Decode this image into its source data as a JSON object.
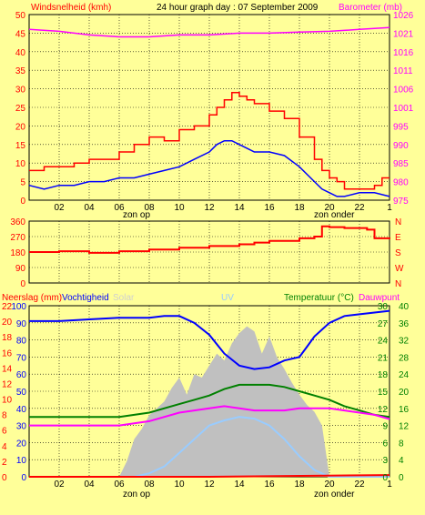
{
  "header": {
    "wind_label": "Windsnelheid (kmh)",
    "title": "24 hour graph day : 07 September 2009",
    "baro_label": "Barometer (mb)",
    "colors": {
      "red": "#ff0000",
      "black": "#000000",
      "magenta": "#ff00ff"
    }
  },
  "bottom_header": {
    "neerslag": "Neerslag (mm)",
    "vocht": "Vochtigheid",
    "solar": "Solar",
    "uv": "UV",
    "temp": "Temperatuur (°C)",
    "dauw": "Dauwpunt"
  },
  "labels": {
    "zon_op": "zon op",
    "zon_onder": "zon onder"
  },
  "chart_data": [
    {
      "type": "line",
      "x_ticks": [
        "02",
        "04",
        "06",
        "08",
        "10",
        "12",
        "14",
        "16",
        "18",
        "20",
        "22",
        "1"
      ],
      "x_range": [
        0,
        24
      ],
      "y_left": {
        "label": "Windsnelheid (kmh)",
        "range": [
          0,
          50
        ],
        "ticks": [
          "0",
          "5",
          "10",
          "15",
          "20",
          "25",
          "30",
          "35",
          "40",
          "45",
          "50"
        ]
      },
      "y_right": {
        "label": "Barometer (mb)",
        "range": [
          975,
          1025
        ],
        "ticks": [
          "975",
          "980",
          "985",
          "990",
          "995",
          "1001",
          "1006",
          "1011",
          "1016",
          "1021",
          "1026"
        ]
      },
      "grid": true,
      "series": [
        {
          "name": "Windsnelheid (kmh)",
          "color": "#ff0000",
          "style": "step",
          "axis": "left",
          "x": [
            0,
            1,
            2,
            3,
            4,
            5,
            6,
            7,
            8,
            9,
            10,
            11,
            12,
            12.5,
            13,
            13.5,
            14,
            14.5,
            15,
            16,
            17,
            18,
            19,
            19.5,
            20,
            20.5,
            21,
            22,
            23,
            23.5,
            24
          ],
          "y": [
            8,
            9,
            9,
            10,
            11,
            11,
            13,
            15,
            17,
            16,
            19,
            20,
            23,
            25,
            27,
            29,
            28,
            27,
            26,
            24,
            22,
            17,
            11,
            8,
            6,
            5,
            3,
            3,
            4,
            6,
            6
          ]
        },
        {
          "name": "",
          "color": "#0000ff",
          "axis": "left",
          "x": [
            0,
            1,
            2,
            3,
            4,
            5,
            6,
            7,
            8,
            9,
            10,
            11,
            12,
            12.5,
            13,
            13.5,
            14,
            14.5,
            15,
            16,
            17,
            18,
            19,
            19.5,
            20,
            20.5,
            21,
            22,
            23,
            24
          ],
          "y": [
            4,
            3,
            4,
            4,
            5,
            5,
            6,
            6,
            7,
            8,
            9,
            11,
            13,
            15,
            16,
            16,
            15,
            14,
            13,
            13,
            12,
            9,
            5,
            3,
            2,
            1,
            1,
            2,
            2,
            1
          ]
        },
        {
          "name": "Barometer (mb)",
          "color": "#ff00ff",
          "axis": "right",
          "x": [
            0,
            2,
            4,
            6,
            8,
            10,
            12,
            14,
            16,
            18,
            20,
            22,
            24
          ],
          "y": [
            1021,
            1020.5,
            1019.5,
            1019,
            1019,
            1019.5,
            1019.5,
            1020,
            1020,
            1020.3,
            1020.5,
            1021,
            1021.5
          ]
        }
      ]
    },
    {
      "type": "line",
      "x_ticks": [],
      "x_range": [
        0,
        24
      ],
      "y_left": {
        "label": "",
        "range": [
          0,
          360
        ],
        "ticks": [
          "0",
          "90",
          "180",
          "270",
          "360"
        ]
      },
      "y_right_labels": [
        "N",
        "W",
        "S",
        "E",
        "N"
      ],
      "grid": true,
      "series": [
        {
          "name": "",
          "color": "#ff0000",
          "style": "step",
          "axis": "left",
          "x": [
            0,
            2,
            4,
            6,
            8,
            10,
            12,
            14,
            15,
            16,
            18,
            19,
            19.5,
            20,
            21,
            22,
            22.5,
            23,
            24
          ],
          "y": [
            180,
            185,
            175,
            185,
            195,
            205,
            215,
            225,
            235,
            245,
            260,
            270,
            330,
            325,
            320,
            320,
            310,
            260,
            255
          ]
        }
      ]
    },
    {
      "type": "area",
      "x_ticks": [
        "02",
        "04",
        "06",
        "08",
        "10",
        "12",
        "14",
        "16",
        "18",
        "20",
        "22",
        "1"
      ],
      "x_range": [
        0,
        24
      ],
      "y_left_outer": {
        "label": "Neerslag (mm)",
        "ticks": [
          "0",
          "2",
          "4",
          "6",
          "8",
          "10",
          "12",
          "14",
          "16",
          "18",
          "20",
          "22"
        ]
      },
      "y_left": {
        "label": "Vochtigheid",
        "range": [
          0,
          100
        ],
        "ticks": [
          "0",
          "10",
          "20",
          "30",
          "40",
          "50",
          "60",
          "70",
          "80",
          "90",
          "100"
        ]
      },
      "y_right_inner": {
        "label": "Temperatuur (°C)",
        "ticks": [
          "0",
          "3",
          "6",
          "9",
          "12",
          "15",
          "18",
          "21",
          "24",
          "27",
          "30"
        ]
      },
      "y_right": {
        "label": "",
        "range": [
          0,
          40
        ],
        "ticks": [
          "0",
          "4",
          "8",
          "12",
          "16",
          "20",
          "24",
          "28",
          "32",
          "36",
          "40"
        ]
      },
      "grid": true,
      "series": [
        {
          "name": "Solar",
          "color": "#c0c0c0",
          "axis": "left",
          "kind": "area",
          "x": [
            0,
            6,
            6.5,
            7,
            7.5,
            8,
            8.5,
            9,
            9.5,
            10,
            10.5,
            11,
            11.5,
            12,
            12.5,
            13,
            13.5,
            14,
            14.5,
            15,
            15.5,
            16,
            16.5,
            17,
            17.5,
            18,
            18.5,
            19,
            19.5,
            20,
            24
          ],
          "y": [
            0,
            0,
            9,
            22,
            28,
            36,
            40,
            44,
            52,
            58,
            48,
            60,
            58,
            65,
            72,
            68,
            78,
            84,
            88,
            85,
            72,
            82,
            70,
            63,
            55,
            48,
            42,
            38,
            30,
            0,
            0
          ]
        },
        {
          "name": "UV",
          "color": "#99ccff",
          "axis": "left",
          "x": [
            0,
            7,
            8,
            9,
            10,
            11,
            12,
            13,
            14,
            15,
            16,
            17,
            18,
            19,
            20,
            24
          ],
          "y": [
            0,
            0,
            2,
            6,
            14,
            22,
            30,
            33,
            35,
            34,
            30,
            22,
            12,
            4,
            0,
            0
          ]
        },
        {
          "name": "Vochtigheid",
          "color": "#0000ff",
          "axis": "left",
          "x": [
            0,
            2,
            4,
            6,
            8,
            9,
            10,
            11,
            12,
            13,
            14,
            15,
            16,
            17,
            18,
            18.5,
            19,
            20,
            21,
            22,
            23,
            24
          ],
          "y": [
            91,
            91,
            92,
            93,
            93,
            94,
            94,
            90,
            83,
            72,
            65,
            63,
            64,
            68,
            70,
            76,
            82,
            90,
            94,
            95,
            96,
            97
          ]
        },
        {
          "name": "Temperatuur (°C)",
          "color": "#008000",
          "axis": "right",
          "x": [
            0,
            2,
            4,
            6,
            8,
            10,
            11,
            12,
            13,
            14,
            15,
            16,
            17,
            18,
            19,
            20,
            21,
            22,
            23,
            24
          ],
          "y": [
            14,
            14,
            14,
            14,
            15,
            17,
            18,
            19,
            20.5,
            21.5,
            21.5,
            21.5,
            21,
            20,
            19,
            18,
            16.5,
            15.5,
            14.5,
            14
          ]
        },
        {
          "name": "Dauwpunt",
          "color": "#ff00ff",
          "axis": "right",
          "x": [
            0,
            2,
            4,
            6,
            8,
            10,
            11,
            12,
            13,
            14,
            15,
            16,
            17,
            18,
            19,
            20,
            21,
            22,
            23,
            24
          ],
          "y": [
            12,
            12,
            12,
            12,
            13,
            15,
            15.5,
            16,
            16.5,
            16,
            15.5,
            15.5,
            15.5,
            16,
            16,
            16,
            15.5,
            15,
            14.5,
            13.5
          ]
        },
        {
          "name": "Neerslag (mm)",
          "color": "#ff0000",
          "axis": "left",
          "x": [
            0,
            12,
            24
          ],
          "y": [
            0,
            0,
            1
          ]
        }
      ]
    }
  ]
}
